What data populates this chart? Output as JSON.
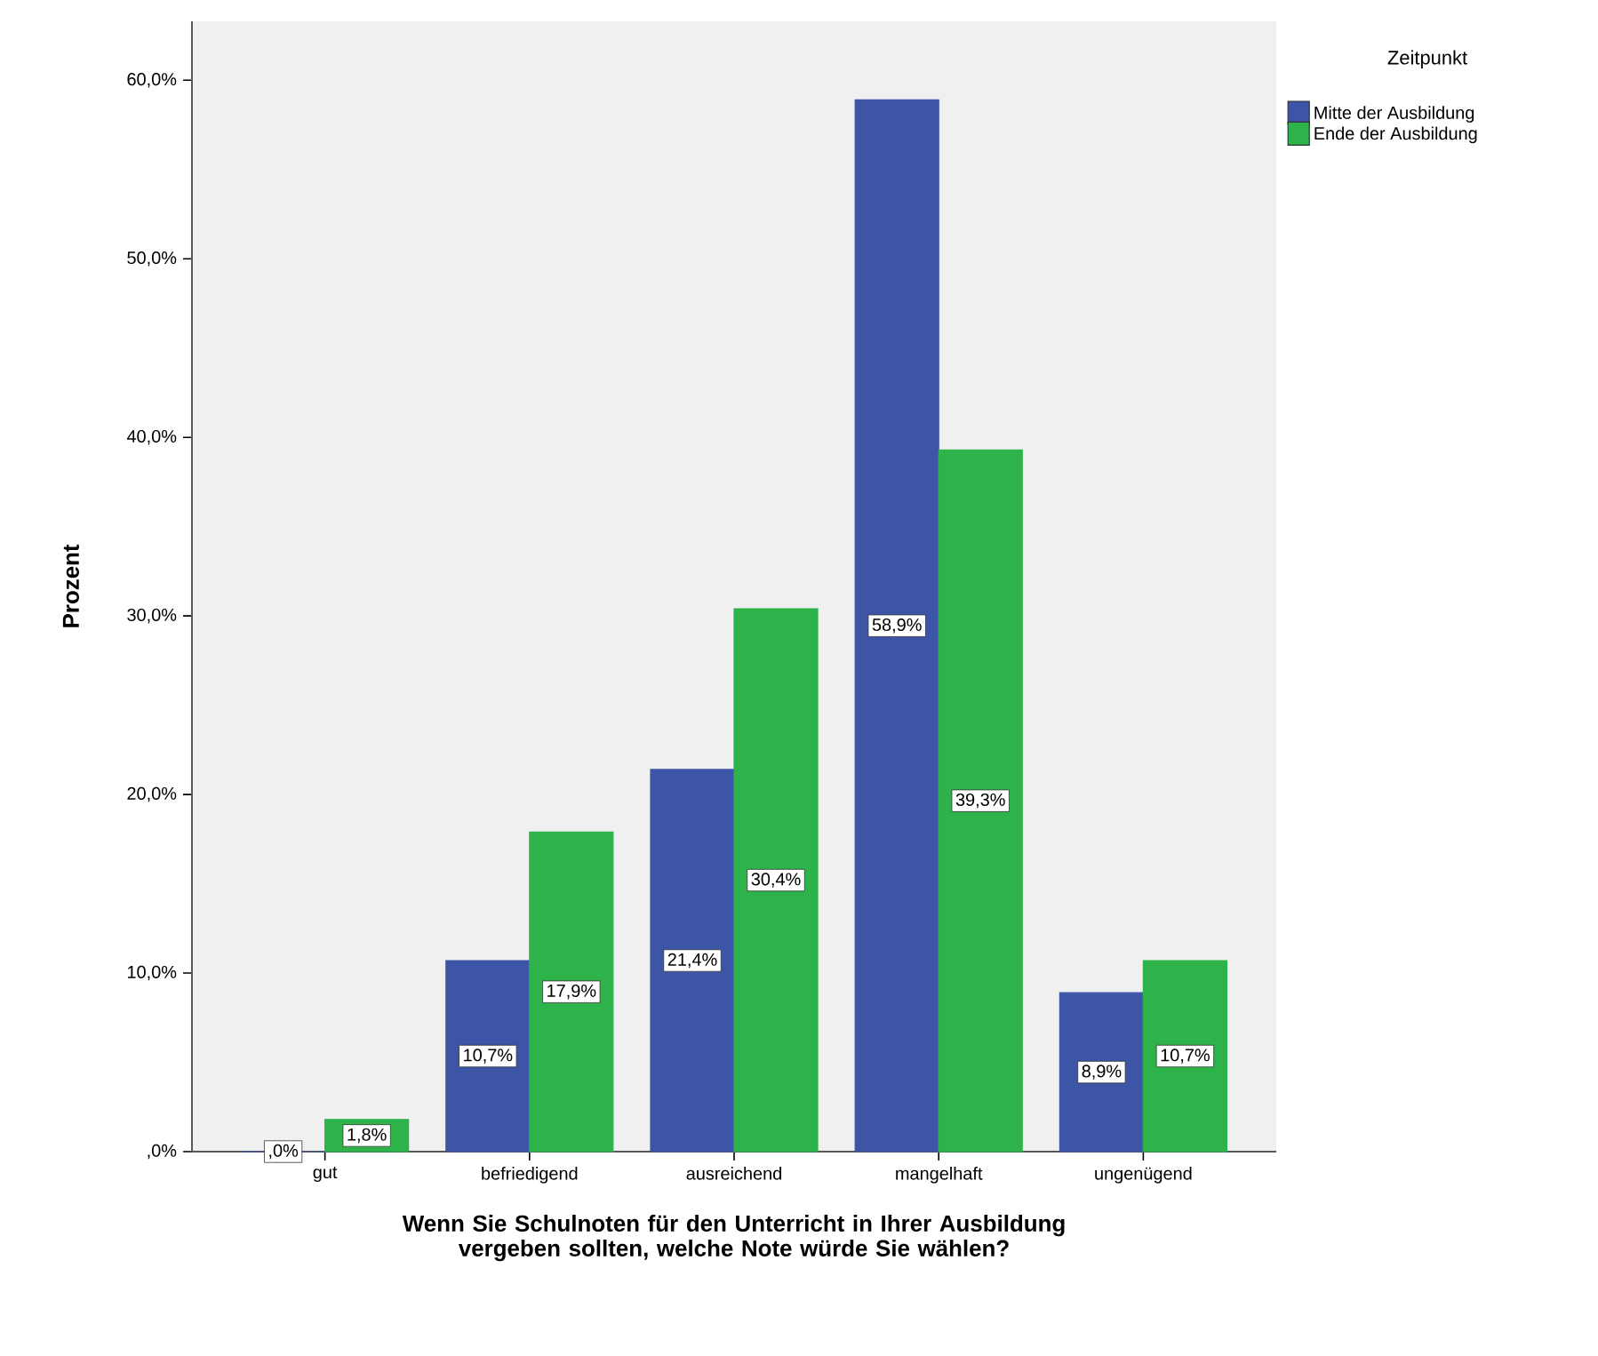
{
  "chart_data": {
    "type": "bar",
    "xlabel": "Wenn Sie Schulnoten für den Unterricht in Ihrer Ausbildung vergeben sollten, welche Note würde Sie wählen?",
    "ylabel": "Prozent",
    "legend_title": "Zeitpunkt",
    "categories": [
      "gut",
      "befriedigend",
      "ausreichend",
      "mangelhaft",
      "ungenügend"
    ],
    "series": [
      {
        "name": "Mitte der Ausbildung",
        "color": "#3c55a6",
        "values": [
          0,
          10.7,
          21.4,
          58.9,
          8.9
        ],
        "value_labels": [
          ",0%",
          "10,7%",
          "21,4%",
          "58,9%",
          "8,9%"
        ]
      },
      {
        "name": "Ende der Ausbildung",
        "color": "#2db34a",
        "values": [
          1.8,
          17.9,
          30.4,
          39.3,
          10.7
        ],
        "value_labels": [
          "1,8%",
          "17,9%",
          "30,4%",
          "39,3%",
          "10,7%"
        ]
      }
    ],
    "ylim": [
      0,
      63.3
    ],
    "yticks": [
      {
        "value": 0,
        "label": ",0%"
      },
      {
        "value": 10,
        "label": "10,0%"
      },
      {
        "value": 20,
        "label": "20,0%"
      },
      {
        "value": 30,
        "label": "30,0%"
      },
      {
        "value": 40,
        "label": "40,0%"
      },
      {
        "value": 50,
        "label": "50,0%"
      },
      {
        "value": 60,
        "label": "60,0%"
      }
    ],
    "legend": "top right",
    "grid": false
  }
}
